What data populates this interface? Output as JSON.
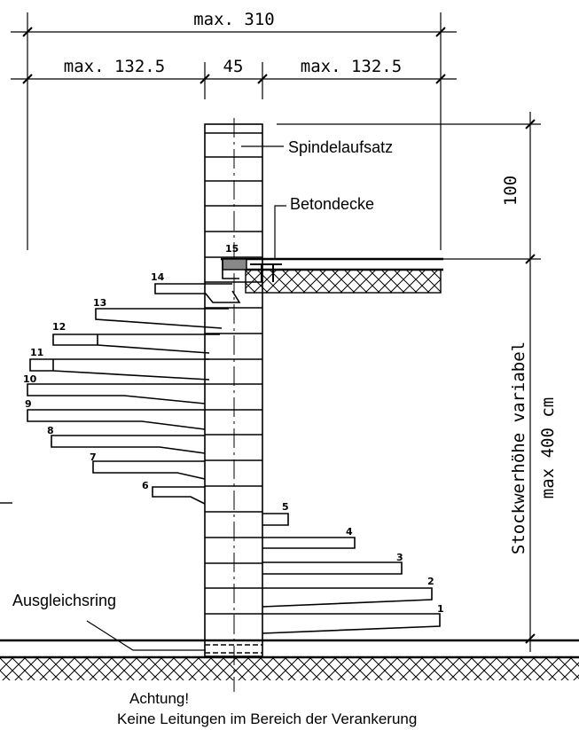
{
  "dimensions": {
    "total_width": "max. 310",
    "left_width": "max. 132.5",
    "center_width": "45",
    "right_width": "max. 132.5",
    "top_height": "100",
    "floor_height_1": "Stockwerhöhe variabel",
    "floor_height_2": "max  400 cm"
  },
  "labels": {
    "spindle_top": "Spindelaufsatz",
    "concrete_ceiling": "Betondecke",
    "leveling_ring": "Ausgleichsring"
  },
  "steps": [
    "1",
    "2",
    "3",
    "4",
    "5",
    "6",
    "7",
    "8",
    "9",
    "10",
    "11",
    "12",
    "13",
    "14",
    "15"
  ],
  "warning": {
    "title": "Achtung!",
    "text": "Keine Leitungen im Bereich der Verankerung"
  }
}
